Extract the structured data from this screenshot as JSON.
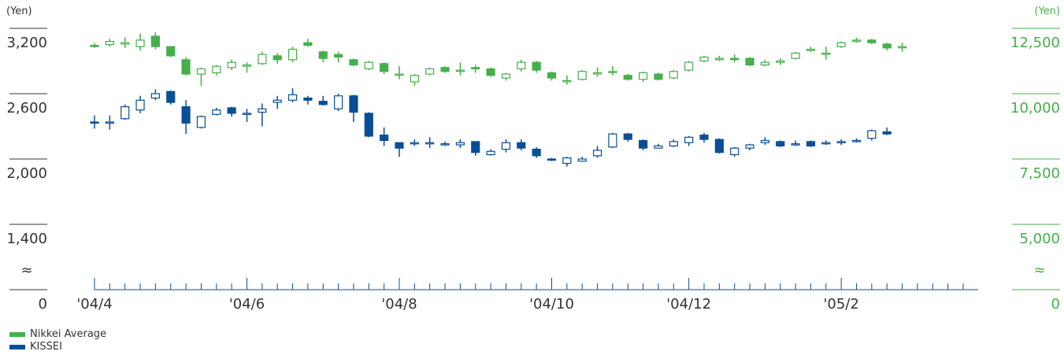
{
  "chart_data": {
    "type": "candlestick",
    "y_unit_left": "(Yen)",
    "y_unit_right": "(Yen)",
    "left_axis": {
      "ticks": [
        {
          "label": "3,200",
          "value": 3200
        },
        {
          "label": "2,600",
          "value": 2600
        },
        {
          "label": "2,000",
          "value": 2000
        },
        {
          "label": "1,400",
          "value": 1400
        }
      ],
      "zero_label": "0"
    },
    "right_axis": {
      "ticks": [
        {
          "label": "12,500",
          "value": 12500
        },
        {
          "label": "10,000",
          "value": 10000
        },
        {
          "label": "7,500",
          "value": 7500
        },
        {
          "label": "5,000",
          "value": 5000
        }
      ],
      "zero_label": "0"
    },
    "break_symbol": "≈",
    "x_labels": [
      "'04/4",
      "'04/6",
      "'04/8",
      "'04/10",
      "'04/12",
      "'05/2"
    ],
    "x_label_week_index": [
      0,
      10,
      20,
      30,
      39,
      49
    ],
    "week_count": 58,
    "series": [
      {
        "name": "Nikkei Average",
        "color": "#45b04a",
        "axis": "right",
        "candles": [
          [
            11850,
            11820,
            11950,
            11750
          ],
          [
            11880,
            12000,
            12100,
            11800
          ],
          [
            11900,
            11950,
            12150,
            11750
          ],
          [
            11800,
            12050,
            12300,
            11650
          ],
          [
            12200,
            11800,
            12350,
            11700
          ],
          [
            11800,
            11450,
            11800,
            11400
          ],
          [
            11300,
            10750,
            11400,
            10700
          ],
          [
            10750,
            10950,
            11000,
            10300
          ],
          [
            10800,
            11050,
            11100,
            10700
          ],
          [
            11000,
            11200,
            11300,
            10900
          ],
          [
            11050,
            11100,
            11200,
            10800
          ],
          [
            11150,
            11500,
            11600,
            11100
          ],
          [
            11450,
            11300,
            11550,
            11150
          ],
          [
            11300,
            11700,
            11800,
            11200
          ],
          [
            11950,
            11850,
            12100,
            11800
          ],
          [
            11600,
            11350,
            11650,
            11200
          ],
          [
            11500,
            11400,
            11600,
            11200
          ],
          [
            11300,
            11100,
            11350,
            11050
          ],
          [
            10950,
            11200,
            11250,
            10900
          ],
          [
            11150,
            10850,
            11200,
            10750
          ],
          [
            10750,
            10750,
            11050,
            10550
          ],
          [
            10450,
            10700,
            10750,
            10300
          ],
          [
            10750,
            10950,
            11000,
            10700
          ],
          [
            11000,
            10850,
            11050,
            10800
          ],
          [
            10900,
            10900,
            11200,
            10700
          ],
          [
            11000,
            10950,
            11100,
            10800
          ],
          [
            10950,
            10700,
            11000,
            10650
          ],
          [
            10600,
            10750,
            10800,
            10500
          ],
          [
            10950,
            11200,
            11300,
            10850
          ],
          [
            11200,
            10900,
            11250,
            10800
          ],
          [
            10800,
            10600,
            10850,
            10500
          ],
          [
            10500,
            10500,
            10700,
            10350
          ],
          [
            10550,
            10850,
            10900,
            10500
          ],
          [
            10800,
            10800,
            11000,
            10650
          ],
          [
            10850,
            10850,
            11050,
            10700
          ],
          [
            10700,
            10550,
            10750,
            10500
          ],
          [
            10550,
            10800,
            10850,
            10450
          ],
          [
            10750,
            10550,
            10800,
            10500
          ],
          [
            10600,
            10850,
            10900,
            10550
          ],
          [
            10900,
            11200,
            11250,
            10850
          ],
          [
            11250,
            11400,
            11450,
            11200
          ],
          [
            11300,
            11350,
            11450,
            11250
          ],
          [
            11350,
            11300,
            11500,
            11200
          ],
          [
            11350,
            11100,
            11400,
            11050
          ],
          [
            11100,
            11200,
            11300,
            11050
          ],
          [
            11200,
            11250,
            11350,
            11100
          ],
          [
            11350,
            11550,
            11600,
            11300
          ],
          [
            11650,
            11700,
            11800,
            11600
          ],
          [
            11550,
            11550,
            11800,
            11300
          ],
          [
            11800,
            11950,
            12000,
            11750
          ],
          [
            12050,
            12050,
            12150,
            11950
          ],
          [
            12050,
            11950,
            12100,
            11900
          ],
          [
            11900,
            11750,
            11950,
            11650
          ],
          [
            11800,
            11800,
            11950,
            11600
          ]
        ]
      },
      {
        "name": "KISSEI",
        "color": "#0a4f96",
        "axis": "left",
        "candles": [
          [
            2340,
            2330,
            2400,
            2280
          ],
          [
            2340,
            2340,
            2400,
            2270
          ],
          [
            2370,
            2480,
            2500,
            2360
          ],
          [
            2450,
            2540,
            2580,
            2420
          ],
          [
            2560,
            2600,
            2640,
            2540
          ],
          [
            2620,
            2520,
            2630,
            2500
          ],
          [
            2480,
            2330,
            2540,
            2230
          ],
          [
            2290,
            2390,
            2400,
            2280
          ],
          [
            2410,
            2450,
            2470,
            2400
          ],
          [
            2470,
            2420,
            2480,
            2390
          ],
          [
            2420,
            2420,
            2460,
            2340
          ],
          [
            2430,
            2460,
            2510,
            2300
          ],
          [
            2520,
            2540,
            2580,
            2460
          ],
          [
            2540,
            2590,
            2650,
            2520
          ],
          [
            2560,
            2540,
            2580,
            2500
          ],
          [
            2530,
            2500,
            2580,
            2490
          ],
          [
            2460,
            2580,
            2600,
            2440
          ],
          [
            2580,
            2430,
            2590,
            2340
          ],
          [
            2420,
            2210,
            2430,
            2200
          ],
          [
            2220,
            2170,
            2290,
            2120
          ],
          [
            2150,
            2100,
            2150,
            2020
          ],
          [
            2140,
            2150,
            2180,
            2120
          ],
          [
            2140,
            2150,
            2200,
            2100
          ],
          [
            2140,
            2140,
            2160,
            2120
          ],
          [
            2130,
            2150,
            2180,
            2100
          ],
          [
            2160,
            2060,
            2160,
            2030
          ],
          [
            2040,
            2070,
            2090,
            2030
          ],
          [
            2090,
            2150,
            2180,
            2060
          ],
          [
            2150,
            2100,
            2180,
            2080
          ],
          [
            2090,
            2030,
            2110,
            2010
          ],
          [
            2000,
            1990,
            2010,
            1980
          ],
          [
            1960,
            2010,
            2020,
            1930
          ],
          [
            1980,
            2000,
            2020,
            1980
          ],
          [
            2030,
            2080,
            2120,
            2010
          ],
          [
            2110,
            2230,
            2240,
            2100
          ],
          [
            2230,
            2180,
            2240,
            2160
          ],
          [
            2170,
            2100,
            2180,
            2080
          ],
          [
            2100,
            2120,
            2140,
            2100
          ],
          [
            2120,
            2160,
            2180,
            2110
          ],
          [
            2150,
            2200,
            2210,
            2120
          ],
          [
            2220,
            2180,
            2240,
            2150
          ],
          [
            2180,
            2060,
            2190,
            2050
          ],
          [
            2040,
            2100,
            2110,
            2020
          ],
          [
            2100,
            2130,
            2140,
            2080
          ],
          [
            2150,
            2170,
            2200,
            2130
          ],
          [
            2160,
            2120,
            2170,
            2110
          ],
          [
            2140,
            2140,
            2170,
            2120
          ],
          [
            2160,
            2120,
            2170,
            2110
          ],
          [
            2140,
            2150,
            2170,
            2130
          ],
          [
            2150,
            2160,
            2180,
            2130
          ],
          [
            2160,
            2170,
            2190,
            2150
          ],
          [
            2190,
            2260,
            2270,
            2170
          ],
          [
            2250,
            2230,
            2290,
            2220
          ]
        ]
      }
    ],
    "legend": [
      {
        "label": "Nikkei Average",
        "color": "#45b04a"
      },
      {
        "label": "KISSEI",
        "color": "#0a4f96"
      }
    ]
  }
}
